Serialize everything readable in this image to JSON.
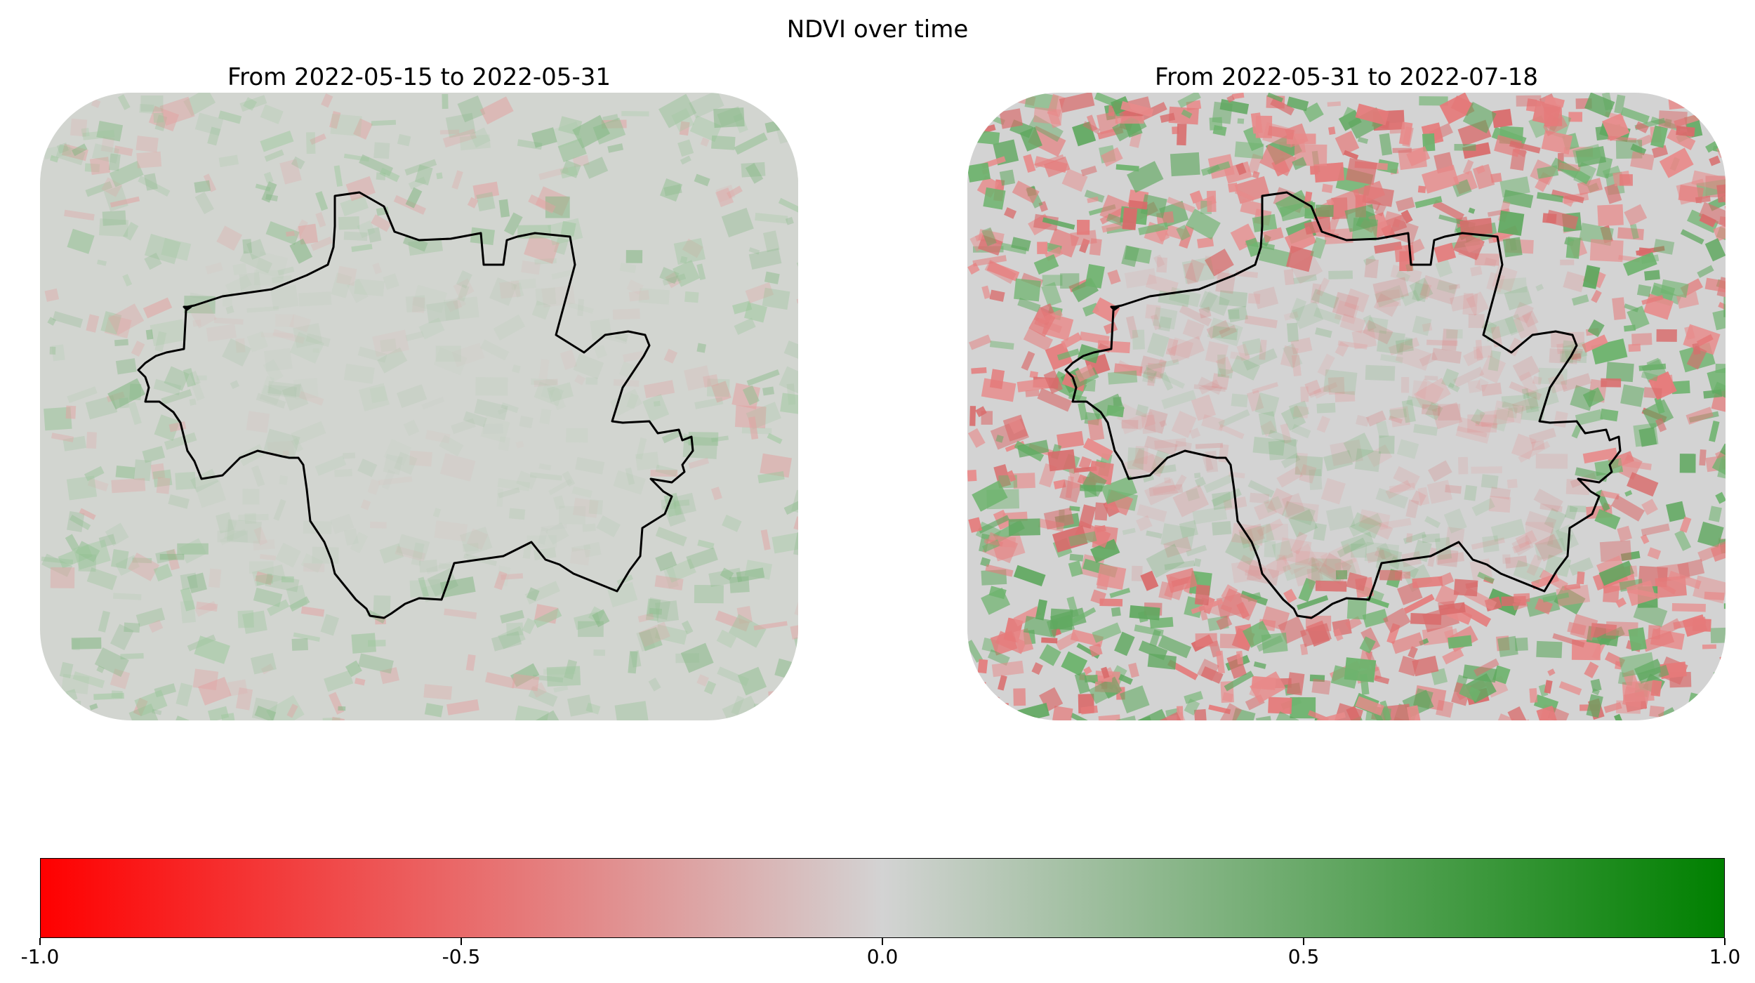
{
  "figure": {
    "title": "NDVI over time"
  },
  "panels": [
    {
      "title": "From 2022-05-15 to 2022-05-31",
      "change_intensity": "low",
      "dominant_change": "slight positive (green)"
    },
    {
      "title": "From 2022-05-31 to 2022-07-18",
      "change_intensity": "high",
      "dominant_change": "mixed, mostly negative (red) in fields"
    }
  ],
  "colorbar": {
    "cmap_colors": [
      "#ff0000",
      "#d3d3d3",
      "#008000"
    ],
    "vmin": -1.0,
    "vmax": 1.0,
    "ticks": [
      {
        "value": -1.0,
        "label": "-1.0"
      },
      {
        "value": -0.5,
        "label": "-0.5"
      },
      {
        "value": 0.0,
        "label": "0.0"
      },
      {
        "value": 0.5,
        "label": "0.5"
      },
      {
        "value": 1.0,
        "label": "1.0"
      }
    ]
  },
  "colors": {
    "background_map": "#d3d3d3",
    "boundary": "#000000",
    "positive": "#5fa85f",
    "negative": "#e57a7a"
  }
}
